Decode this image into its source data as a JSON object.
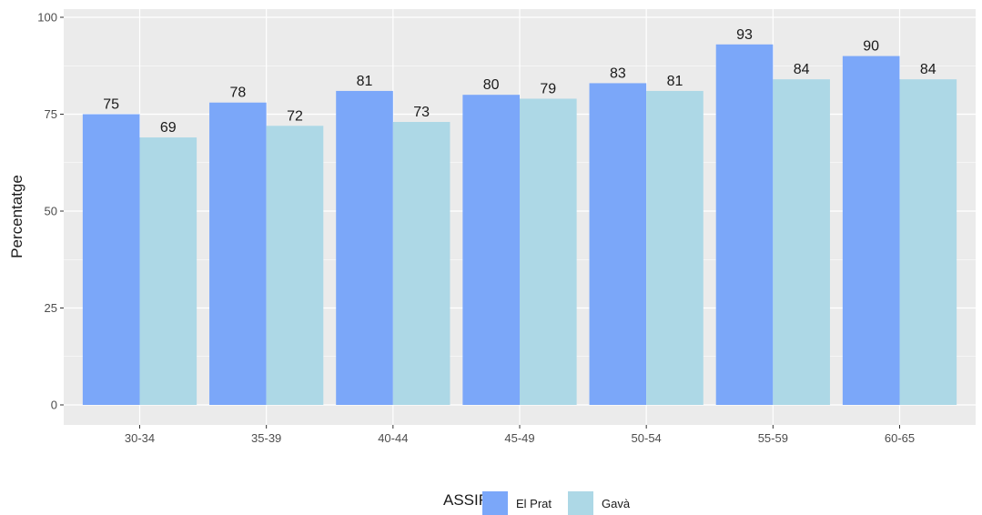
{
  "chart_data": {
    "type": "bar",
    "categories": [
      "30-34",
      "35-39",
      "40-44",
      "45-49",
      "50-54",
      "55-59",
      "60-65"
    ],
    "series": [
      {
        "name": "El Prat",
        "values": [
          75,
          78,
          81,
          80,
          83,
          93,
          90
        ],
        "color": "#7BA7F9"
      },
      {
        "name": "Gavà",
        "values": [
          69,
          72,
          73,
          79,
          81,
          84,
          84
        ],
        "color": "#ADD8E6"
      }
    ],
    "ylabel": "Percentatge",
    "xlabel": "",
    "ylim": [
      0,
      100
    ],
    "yticks": [
      0,
      25,
      50,
      75,
      100
    ],
    "legend_title": "ASSIR",
    "legend_position": "bottom",
    "grid": true,
    "panel_background": "#EBEBEB"
  }
}
